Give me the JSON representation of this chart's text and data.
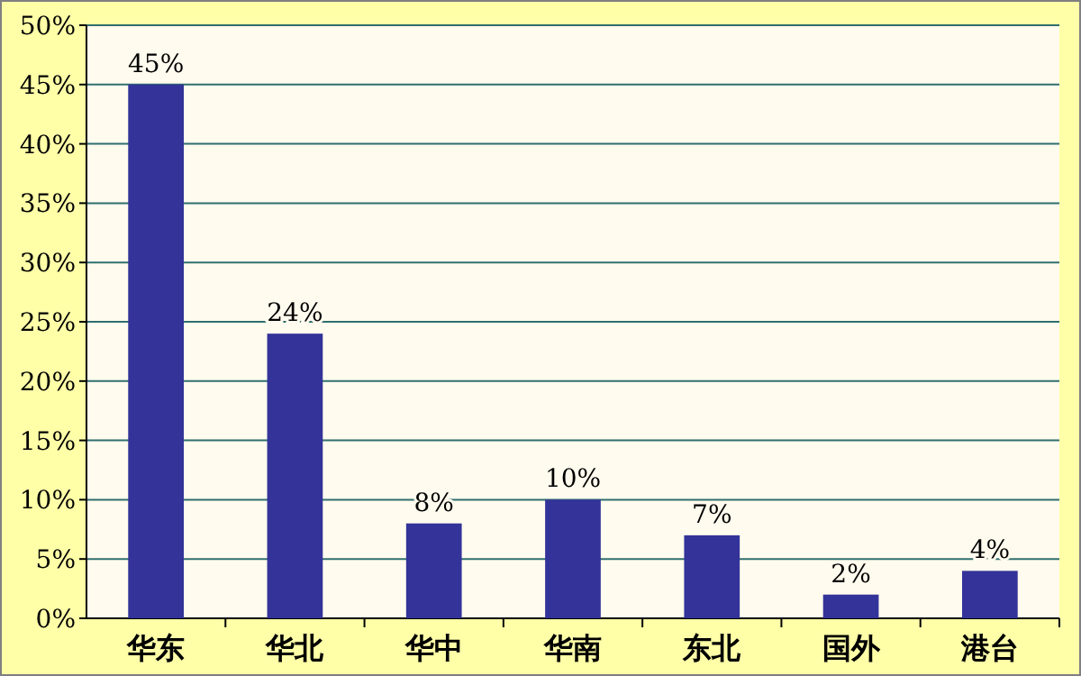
{
  "chart_data": {
    "type": "bar",
    "categories": [
      "华东",
      "华北",
      "华中",
      "华南",
      "东北",
      "国外",
      "港台"
    ],
    "values": [
      45,
      24,
      8,
      10,
      7,
      2,
      4
    ],
    "value_labels": [
      "45%",
      "24%",
      "8%",
      "10%",
      "7%",
      "2%",
      "4%"
    ],
    "color": "#333399",
    "ylim": [
      0,
      50
    ],
    "yticks": [
      {
        "value": 0,
        "label": "0%"
      },
      {
        "value": 5,
        "label": "5%"
      },
      {
        "value": 10,
        "label": "10%"
      },
      {
        "value": 15,
        "label": "15%"
      },
      {
        "value": 20,
        "label": "20%"
      },
      {
        "value": 25,
        "label": "25%"
      },
      {
        "value": 30,
        "label": "30%"
      },
      {
        "value": 35,
        "label": "35%"
      },
      {
        "value": 40,
        "label": "40%"
      },
      {
        "value": 45,
        "label": "45%"
      },
      {
        "value": 50,
        "label": "50%"
      }
    ],
    "grid": "y"
  }
}
